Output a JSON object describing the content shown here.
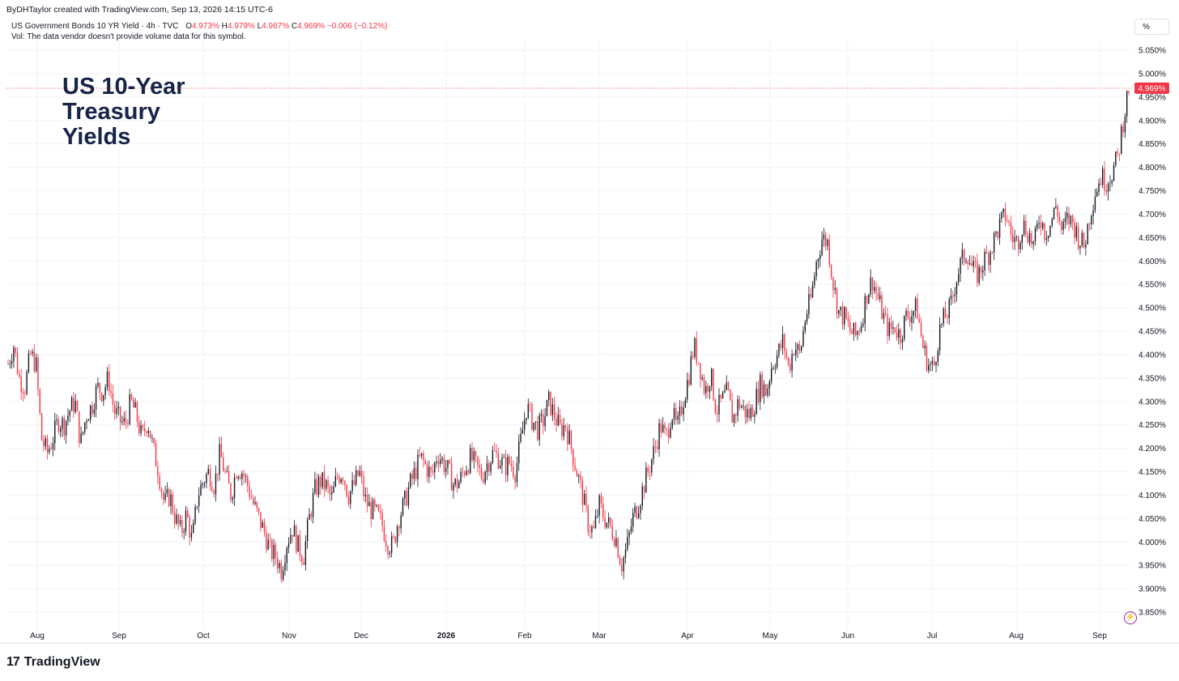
{
  "credit": "ByDHTaylor created with TradingView.com, Sep 13, 2026 14:15 UTC-6",
  "legend": {
    "symbol": "US Government Bonds 10 YR Yield · 4h · TVC",
    "o_label": "O",
    "o_value": "4.973%",
    "h_label": "H",
    "h_value": "4.979%",
    "l_label": "L",
    "l_value": "4.967%",
    "c_label": "C",
    "c_value": "4.969%",
    "change": "−0.006 (−0.12%)"
  },
  "volume_note": "Vol: The data vendor doesn't provide volume data for this symbol.",
  "chart_title": "US 10-Year\nTreasury\nYields",
  "scale_mode_label": "%",
  "brand": {
    "mark": "17",
    "name": "TradingView"
  },
  "icons": {
    "tradingview_logo": "tradingview-logo-icon",
    "bolt": "lightning-bolt-icon"
  },
  "colors": {
    "up": "#131722",
    "down": "#f23645",
    "price_line": "#f23645",
    "accent": "#9c27b0"
  },
  "chart_data": {
    "type": "line",
    "title": "US 10-Year Treasury Yields",
    "subtitle": "US Government Bonds 10 YR Yield · 4h · TVC",
    "xlabel": "",
    "ylabel": "",
    "ylim": [
      3.825,
      5.075
    ],
    "y_ticks": [
      "3.850%",
      "3.900%",
      "3.950%",
      "4.000%",
      "4.050%",
      "4.100%",
      "4.150%",
      "4.200%",
      "4.250%",
      "4.300%",
      "4.350%",
      "4.400%",
      "4.450%",
      "4.500%",
      "4.550%",
      "4.600%",
      "4.650%",
      "4.700%",
      "4.750%",
      "4.800%",
      "4.850%",
      "4.900%",
      "4.950%",
      "5.000%",
      "5.050%"
    ],
    "x_ticks": [
      "Aug",
      "Sep",
      "Oct",
      "Nov",
      "Dec",
      "2026",
      "Feb",
      "Mar",
      "Apr",
      "May",
      "Jun",
      "Jul",
      "Aug",
      "Sep"
    ],
    "last_price_label": "4.969%",
    "last_price": 4.969,
    "grid": true,
    "series": [
      {
        "values": [
          4.38,
          4.42,
          4.35,
          4.33,
          4.4,
          4.38,
          4.22,
          4.19,
          4.22,
          4.26,
          4.25,
          4.28,
          4.3,
          4.21,
          4.27,
          4.29,
          4.33,
          4.32,
          4.35,
          4.28,
          4.26,
          4.25,
          4.3,
          4.27,
          4.22,
          4.26,
          4.2,
          4.15,
          4.08,
          4.1,
          4.05,
          4.02,
          4.06,
          4.0,
          4.1,
          4.13,
          4.15,
          4.12,
          4.19,
          4.14,
          4.1,
          4.16,
          4.15,
          4.12,
          4.08,
          4.05,
          4.02,
          3.98,
          3.97,
          3.94,
          4.0,
          4.03,
          3.99,
          3.97,
          4.05,
          4.11,
          4.13,
          4.12,
          4.09,
          4.14,
          4.15,
          4.1,
          4.12,
          4.15,
          4.09,
          4.07,
          4.06,
          4.04,
          4.0,
          3.99,
          4.05,
          4.08,
          4.12,
          4.15,
          4.18,
          4.16,
          4.14,
          4.19,
          4.17,
          4.15,
          4.12,
          4.13,
          4.16,
          4.18,
          4.16,
          4.14,
          4.17,
          4.19,
          4.18,
          4.16,
          4.17,
          4.15,
          4.22,
          4.29,
          4.26,
          4.24,
          4.26,
          4.3,
          4.27,
          4.24,
          4.25,
          4.2,
          4.15,
          4.1,
          4.04,
          4.02,
          4.08,
          4.05,
          4.03,
          4.01,
          3.95,
          3.99,
          4.05,
          4.08,
          4.12,
          4.16,
          4.2,
          4.25,
          4.22,
          4.28,
          4.24,
          4.3,
          4.35,
          4.42,
          4.38,
          4.32,
          4.36,
          4.28,
          4.3,
          4.32,
          4.26,
          4.3,
          4.28,
          4.27,
          4.3,
          4.34,
          4.32,
          4.38,
          4.4,
          4.43,
          4.37,
          4.42,
          4.4,
          4.48,
          4.52,
          4.6,
          4.65,
          4.64,
          4.55,
          4.49,
          4.48,
          4.45,
          4.44,
          4.47,
          4.53,
          4.56,
          4.52,
          4.48,
          4.45,
          4.46,
          4.44,
          4.48,
          4.49,
          4.5,
          4.42,
          4.38,
          4.37,
          4.45,
          4.48,
          4.5,
          4.56,
          4.6,
          4.62,
          4.58,
          4.57,
          4.6,
          4.62,
          4.65,
          4.68,
          4.7,
          4.65,
          4.64,
          4.68,
          4.66,
          4.63,
          4.7,
          4.66,
          4.68,
          4.72,
          4.66,
          4.69,
          4.68,
          4.65,
          4.63,
          4.7,
          4.75,
          4.78,
          4.77,
          4.79,
          4.82,
          4.9,
          4.97
        ]
      }
    ]
  }
}
